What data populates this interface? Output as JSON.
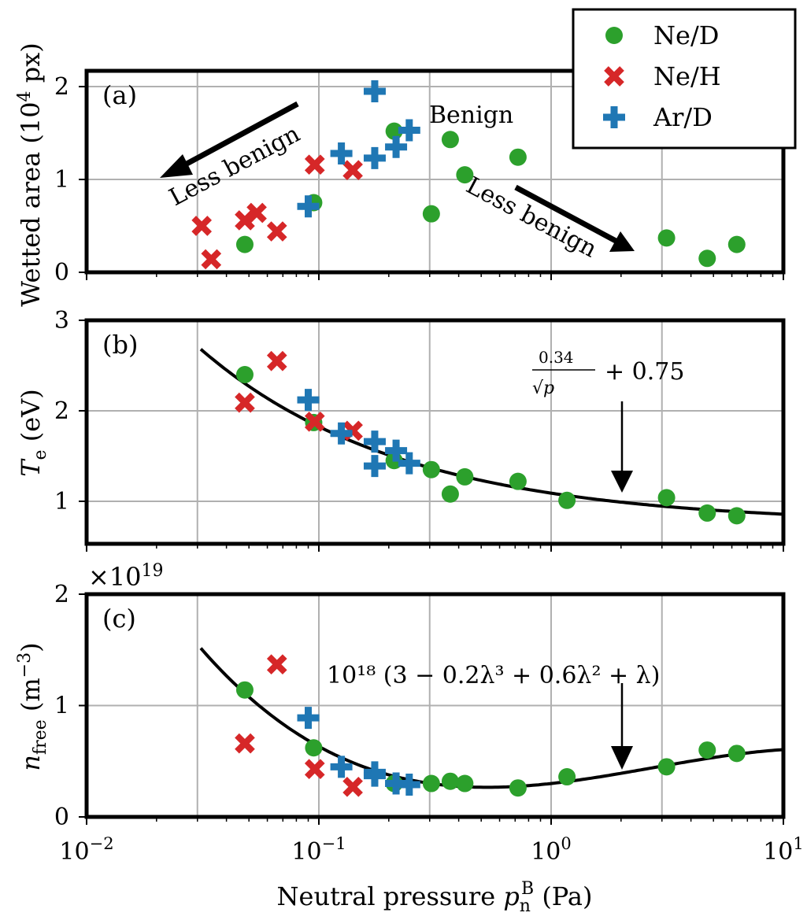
{
  "chart_data": [
    {
      "panel": "(a)",
      "type": "scatter",
      "ylabel_main": "Wetted area (10",
      "ylabel_sup": "4",
      "ylabel_end": " px)",
      "xscale": "log",
      "xlim": [
        0.01,
        10
      ],
      "ylim": [
        0,
        2.17
      ],
      "yticks": [
        0,
        1,
        2
      ],
      "grid": true,
      "annotations": {
        "benign": "Benign",
        "less_benign_left": "Less benign",
        "less_benign_right": "Less benign"
      },
      "series": [
        {
          "name": "Ne/D",
          "x": [
            0.048,
            0.095,
            0.211,
            0.305,
            0.368,
            0.425,
            0.72,
            3.14,
            4.7,
            6.3
          ],
          "y": [
            0.3,
            0.75,
            1.52,
            0.63,
            1.43,
            1.05,
            1.24,
            0.37,
            0.15,
            0.3
          ]
        },
        {
          "name": "Ne/H",
          "x": [
            0.0313,
            0.0344,
            0.048,
            0.054,
            0.066,
            0.096,
            0.14
          ],
          "y": [
            0.5,
            0.14,
            0.56,
            0.64,
            0.44,
            1.16,
            1.1
          ]
        },
        {
          "name": "Ar/D",
          "x": [
            0.09,
            0.125,
            0.174,
            0.174,
            0.215,
            0.245
          ],
          "y": [
            0.71,
            1.28,
            1.95,
            1.23,
            1.35,
            1.53
          ]
        }
      ]
    },
    {
      "panel": "(b)",
      "type": "scatter",
      "ylabel_main": "T",
      "ylabel_sub": "e",
      "ylabel_end": " (eV)",
      "xscale": "log",
      "xlim": [
        0.01,
        10
      ],
      "ylim": [
        0.53,
        3
      ],
      "yticks": [
        1,
        2,
        3
      ],
      "grid": true,
      "fit_label_num": "0.34",
      "fit_label_den": "√p",
      "fit_label_rest": "+ 0.75",
      "fit": {
        "formula": "0.34/sqrt(p)+0.75",
        "xrange": [
          0.031,
          10
        ]
      },
      "series": [
        {
          "name": "Ne/D",
          "x": [
            0.048,
            0.095,
            0.211,
            0.305,
            0.368,
            0.425,
            0.72,
            1.17,
            3.14,
            4.7,
            6.3
          ],
          "y": [
            2.4,
            1.87,
            1.45,
            1.35,
            1.08,
            1.27,
            1.22,
            1.01,
            1.04,
            0.87,
            0.84
          ]
        },
        {
          "name": "Ne/H",
          "x": [
            0.048,
            0.066,
            0.096,
            0.14
          ],
          "y": [
            2.09,
            2.55,
            1.88,
            1.78
          ]
        },
        {
          "name": "Ar/D",
          "x": [
            0.09,
            0.125,
            0.174,
            0.174,
            0.215,
            0.245
          ],
          "y": [
            2.12,
            1.75,
            1.66,
            1.39,
            1.56,
            1.42
          ]
        }
      ]
    },
    {
      "panel": "(c)",
      "type": "scatter",
      "ylabel_main": "n",
      "ylabel_sub": "free",
      "ylabel_end": " (m",
      "ylabel_sup": "−3",
      "ylabel_close": ")",
      "offset_label": "×10",
      "offset_sup": "19",
      "xscale": "log",
      "xlim": [
        0.01,
        10
      ],
      "ylim": [
        0,
        2
      ],
      "yticks": [
        0,
        1,
        2
      ],
      "grid": true,
      "fit_label": "10¹⁸ (3 − 0.2λ³ + 0.6λ² + λ)",
      "fit": {
        "formula": "1e18*(3-0.2*l^3+0.6*l^2+l), l=ln(p)",
        "xrange": [
          0.031,
          10
        ]
      },
      "series": [
        {
          "name": "Ne/D",
          "x": [
            0.048,
            0.095,
            0.211,
            0.305,
            0.368,
            0.425,
            0.72,
            1.17,
            3.14,
            4.7,
            6.3
          ],
          "y": [
            1.14,
            0.62,
            0.3,
            0.3,
            0.32,
            0.3,
            0.26,
            0.36,
            0.45,
            0.6,
            0.57
          ]
        },
        {
          "name": "Ne/H",
          "x": [
            0.048,
            0.066,
            0.096,
            0.14
          ],
          "y": [
            0.66,
            1.37,
            0.43,
            0.27
          ]
        },
        {
          "name": "Ar/D",
          "x": [
            0.09,
            0.125,
            0.174,
            0.174,
            0.215,
            0.245
          ],
          "y": [
            0.89,
            0.45,
            0.4,
            0.37,
            0.3,
            0.29
          ]
        }
      ]
    }
  ],
  "xaxis": {
    "label_main": "Neutral pressure ",
    "label_var": "p",
    "label_sub": "n",
    "label_sup": "B",
    "label_end": " (Pa)",
    "ticks": [
      {
        "base": "10",
        "exp": "−2"
      },
      {
        "base": "10",
        "exp": "−1"
      },
      {
        "base": "10",
        "exp": "0"
      },
      {
        "base": "10",
        "exp": "1"
      }
    ]
  },
  "legend": {
    "placement": "top-right",
    "entries": [
      "Ne/D",
      "Ne/H",
      "Ar/D"
    ]
  },
  "colors": {
    "Ne/D": "#2ca02c",
    "Ne/H": "#d62728",
    "Ar/D": "#1f77b4",
    "grid": "#b0b0b0"
  }
}
